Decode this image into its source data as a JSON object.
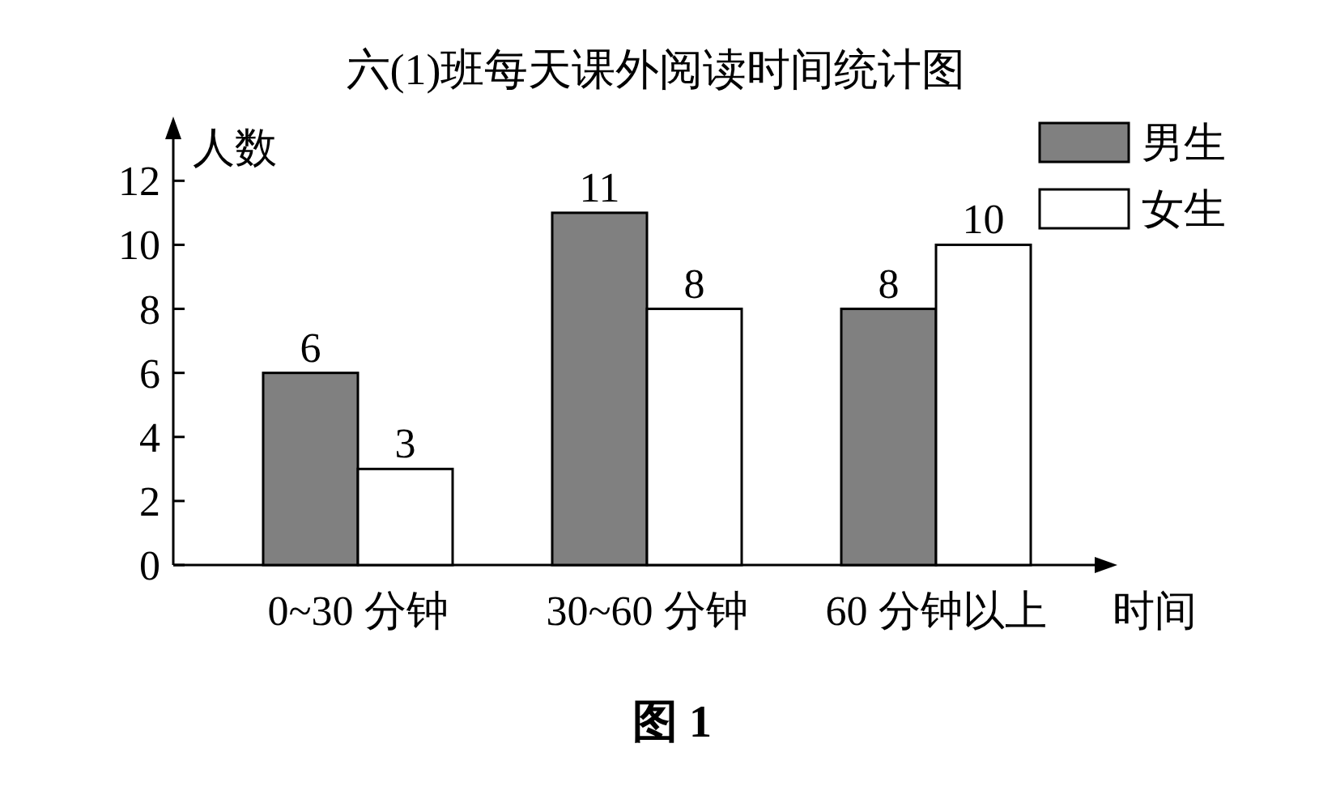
{
  "chart_data": {
    "type": "bar",
    "title": "六(1)班每天课外阅读时间统计图",
    "xlabel": "时间",
    "ylabel": "人数",
    "categories": [
      "0~30 分钟",
      "30~60 分钟",
      "60 分钟以上"
    ],
    "series": [
      {
        "name": "男生",
        "color": "#808080",
        "values": [
          6,
          11,
          8
        ]
      },
      {
        "name": "女生",
        "color": "#ffffff",
        "values": [
          3,
          8,
          10
        ]
      }
    ],
    "ylim": [
      0,
      13.5
    ],
    "yticks": [
      0,
      2,
      4,
      6,
      8,
      10,
      12
    ],
    "data_labels": true,
    "legend": "top right",
    "grid": false,
    "annotations": [
      "图 1"
    ]
  }
}
